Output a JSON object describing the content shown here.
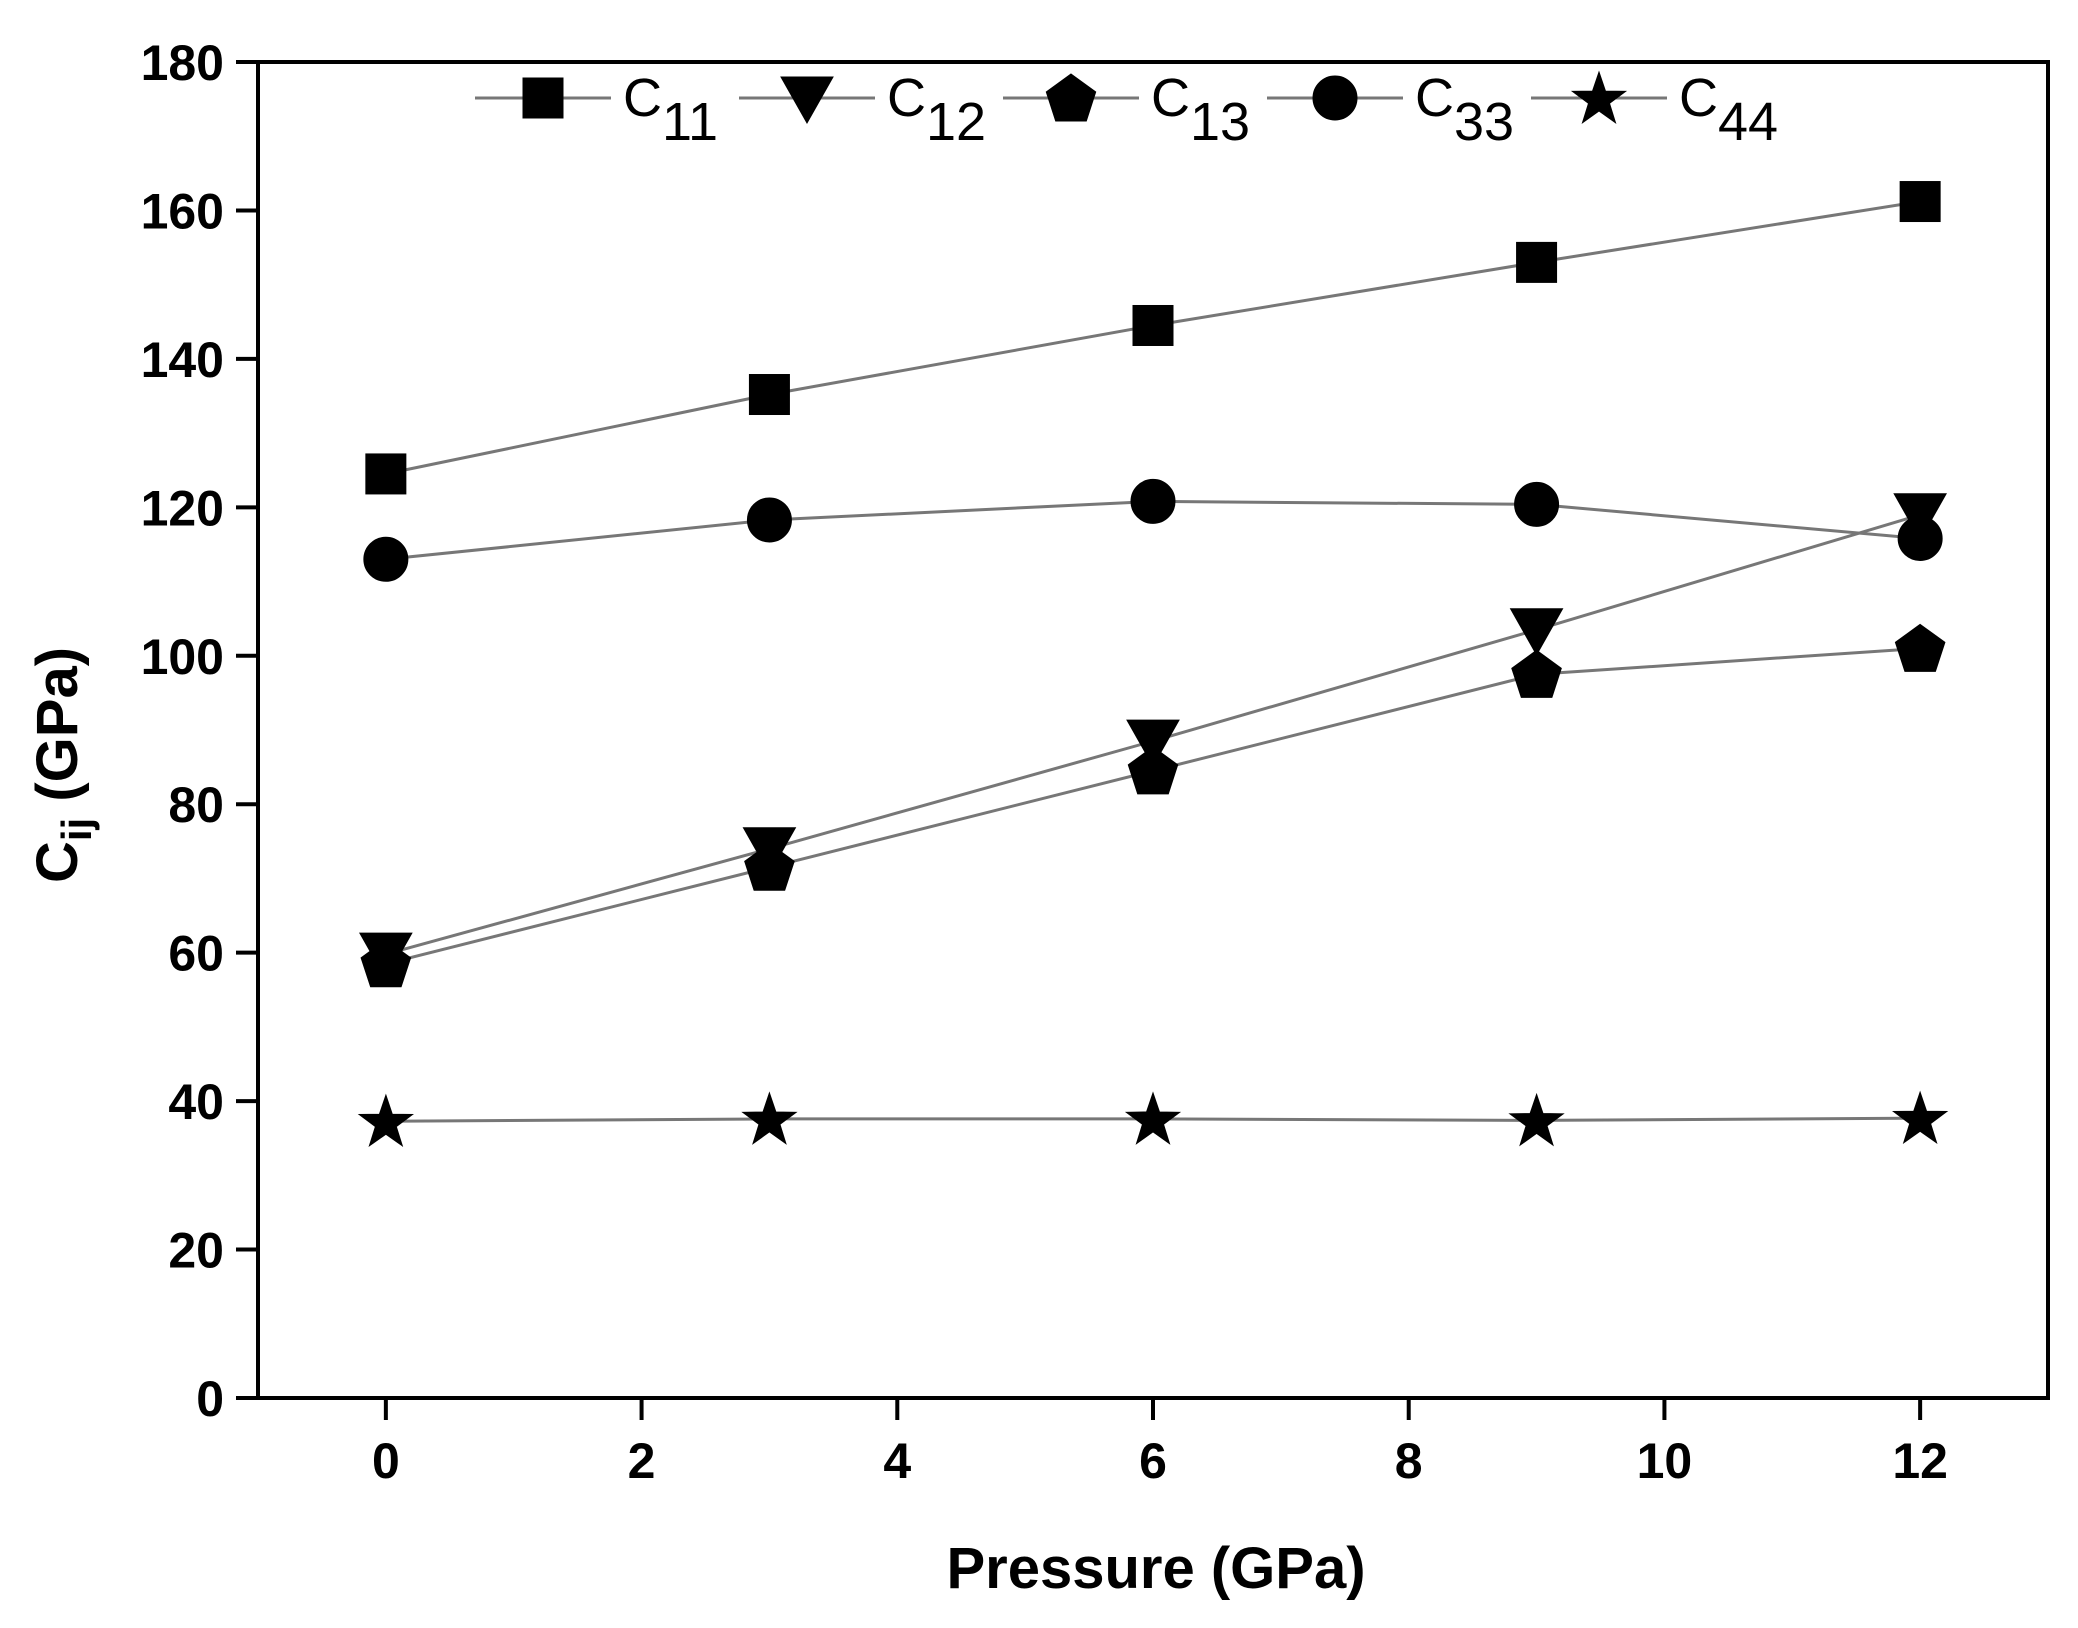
{
  "chart_data": {
    "type": "line",
    "xlabel": "Pressure (GPa)",
    "ylabel_main": "C",
    "ylabel_sub": "ij",
    "ylabel_rest": " (GPa)",
    "xlim": [
      -1,
      13
    ],
    "ylim": [
      0,
      180
    ],
    "xticks": [
      0,
      2,
      4,
      6,
      8,
      10,
      12
    ],
    "yticks": [
      0,
      20,
      40,
      60,
      80,
      100,
      120,
      140,
      160,
      180
    ],
    "x": [
      0,
      3,
      6,
      9,
      12
    ],
    "legend_position": "top",
    "series": [
      {
        "name": "C11",
        "base": "C",
        "sub": "11",
        "marker": "square",
        "values": [
          124.5,
          135.2,
          144.5,
          153.0,
          161.2
        ]
      },
      {
        "name": "C12",
        "base": "C",
        "sub": "12",
        "marker": "triangle-down",
        "values": [
          59.8,
          74.0,
          88.5,
          103.5,
          119.0
        ]
      },
      {
        "name": "C13",
        "base": "C",
        "sub": "13",
        "marker": "pentagon",
        "values": [
          58.5,
          71.5,
          84.5,
          97.5,
          101.0
        ]
      },
      {
        "name": "C33",
        "base": "C",
        "sub": "33",
        "marker": "circle",
        "values": [
          113.0,
          118.3,
          120.8,
          120.4,
          115.8
        ]
      },
      {
        "name": "C44",
        "base": "C",
        "sub": "44",
        "marker": "star",
        "values": [
          37.3,
          37.6,
          37.6,
          37.4,
          37.7
        ]
      }
    ]
  }
}
